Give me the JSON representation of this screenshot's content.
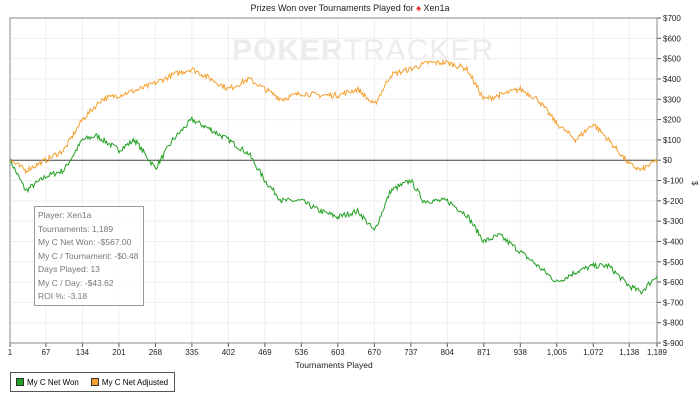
{
  "chart_data": {
    "type": "line",
    "title": "Prizes Won over Tournaments Played for",
    "player": "Xen1a",
    "watermark": "POKERTRACKER",
    "xlabel": "Tournaments Played",
    "ylabel": "$",
    "xlim": [
      1,
      1189
    ],
    "ylim": [
      -900,
      700
    ],
    "x_ticks": [
      "1",
      "67",
      "134",
      "201",
      "268",
      "335",
      "402",
      "469",
      "536",
      "603",
      "670",
      "737",
      "804",
      "871",
      "938",
      "1,005",
      "1,072",
      "1,138",
      "1,189"
    ],
    "y_ticks": [
      "$700",
      "$600",
      "$500",
      "$400",
      "$300",
      "$200",
      "$100",
      "$0",
      "$-100",
      "$-200",
      "$-300",
      "$-400",
      "$-500",
      "$-600",
      "$-700",
      "$-800",
      "$-900"
    ],
    "grid": true,
    "legend_position": "bottom-left",
    "series": [
      {
        "name": "My C Net Won",
        "color": "#22a022",
        "x": [
          1,
          30,
          67,
          100,
          134,
          160,
          201,
          230,
          268,
          300,
          335,
          370,
          402,
          440,
          469,
          500,
          536,
          570,
          603,
          640,
          670,
          700,
          737,
          760,
          804,
          840,
          871,
          900,
          938,
          970,
          1005,
          1040,
          1072,
          1100,
          1138,
          1160,
          1189
        ],
        "y": [
          0,
          -150,
          -80,
          -50,
          100,
          120,
          50,
          100,
          -40,
          100,
          200,
          150,
          100,
          30,
          -100,
          -200,
          -200,
          -250,
          -280,
          -250,
          -350,
          -150,
          -100,
          -200,
          -200,
          -270,
          -400,
          -370,
          -450,
          -520,
          -600,
          -550,
          -520,
          -520,
          -620,
          -650,
          -567
        ]
      },
      {
        "name": "My C Net Adjusted",
        "color": "#f5a030",
        "x": [
          1,
          30,
          67,
          100,
          134,
          170,
          201,
          240,
          268,
          300,
          335,
          370,
          402,
          440,
          469,
          500,
          536,
          570,
          603,
          640,
          670,
          700,
          737,
          770,
          804,
          840,
          871,
          900,
          938,
          970,
          1005,
          1040,
          1072,
          1100,
          1138,
          1160,
          1189
        ],
        "y": [
          0,
          -50,
          0,
          50,
          200,
          300,
          320,
          350,
          380,
          420,
          450,
          400,
          350,
          400,
          350,
          300,
          330,
          320,
          320,
          350,
          270,
          420,
          450,
          480,
          480,
          450,
          300,
          320,
          350,
          300,
          180,
          100,
          180,
          100,
          -20,
          -50,
          0
        ]
      }
    ]
  },
  "tooltip": [
    "Player: Xen1a",
    "Tournaments: 1,189",
    "My C Net Won: -$567.00",
    "My C / Tournament: -$0.48",
    "Days Played: 13",
    "My C / Day: -$43.62",
    "ROI %: -3.18"
  ]
}
